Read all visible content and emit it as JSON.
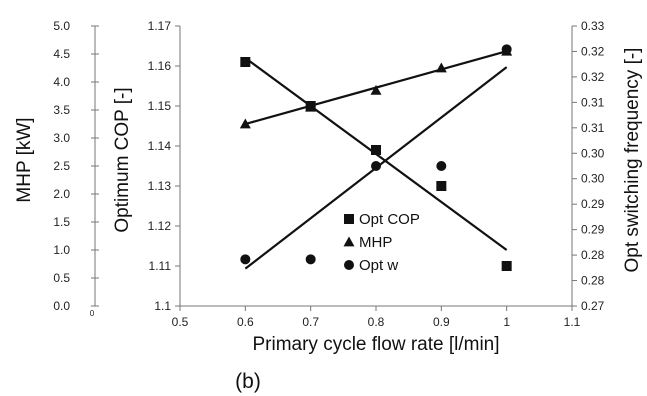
{
  "chart_data": {
    "type": "scatter",
    "x": [
      0.6,
      0.7,
      0.8,
      0.9,
      1.0
    ],
    "xlabel": "Primary cycle flow rate [l/min]",
    "xlim": [
      0.5,
      1.1
    ],
    "xtick_labels": [
      "0.5",
      "0.6",
      "0.7",
      "0.8",
      "0.9",
      "1",
      "1.1"
    ],
    "caption": "(b)",
    "axes": {
      "mhp": {
        "label": "MHP [kW]",
        "ylim": [
          0.0,
          5.0
        ],
        "tick_labels": [
          "0.0",
          "0.5",
          "1.0",
          "1.5",
          "2.0",
          "2.5",
          "3.0",
          "3.5",
          "4.0",
          "4.5",
          "5.0"
        ],
        "orphan_label": "0"
      },
      "cop": {
        "label": "Optimum COP [-]",
        "ylim": [
          1.1,
          1.17
        ],
        "tick_labels": [
          "1.1",
          "1.11",
          "1.12",
          "1.13",
          "1.14",
          "1.15",
          "1.16",
          "1.17"
        ]
      },
      "freq": {
        "label": "Opt switching frequency [-]",
        "ylim": [
          0.27,
          0.33
        ],
        "tick_labels": [
          "0.27",
          "0.28",
          "0.28",
          "0.29",
          "0.29",
          "0.30",
          "0.30",
          "0.31",
          "0.31",
          "0.32",
          "0.32",
          "0.33"
        ]
      }
    },
    "series": [
      {
        "name": "Opt COP",
        "marker": "square",
        "axis": "cop",
        "values": [
          1.161,
          1.15,
          1.139,
          1.13,
          1.11
        ],
        "trend": [
          [
            0.6,
            1.162
          ],
          [
            1.0,
            1.114
          ]
        ]
      },
      {
        "name": "MHP",
        "marker": "triangle",
        "axis": "mhp",
        "values": [
          3.25,
          3.55,
          3.85,
          4.25,
          4.55
        ],
        "trend": [
          [
            0.6,
            3.25
          ],
          [
            1.0,
            4.55
          ]
        ]
      },
      {
        "name": "Opt w",
        "marker": "circle",
        "axis": "freq",
        "values": [
          0.28,
          0.28,
          0.3,
          0.3,
          0.325
        ],
        "trend": [
          [
            0.6,
            0.278
          ],
          [
            1.0,
            0.3212
          ]
        ]
      }
    ],
    "grid": false,
    "legend": "lower-center"
  }
}
